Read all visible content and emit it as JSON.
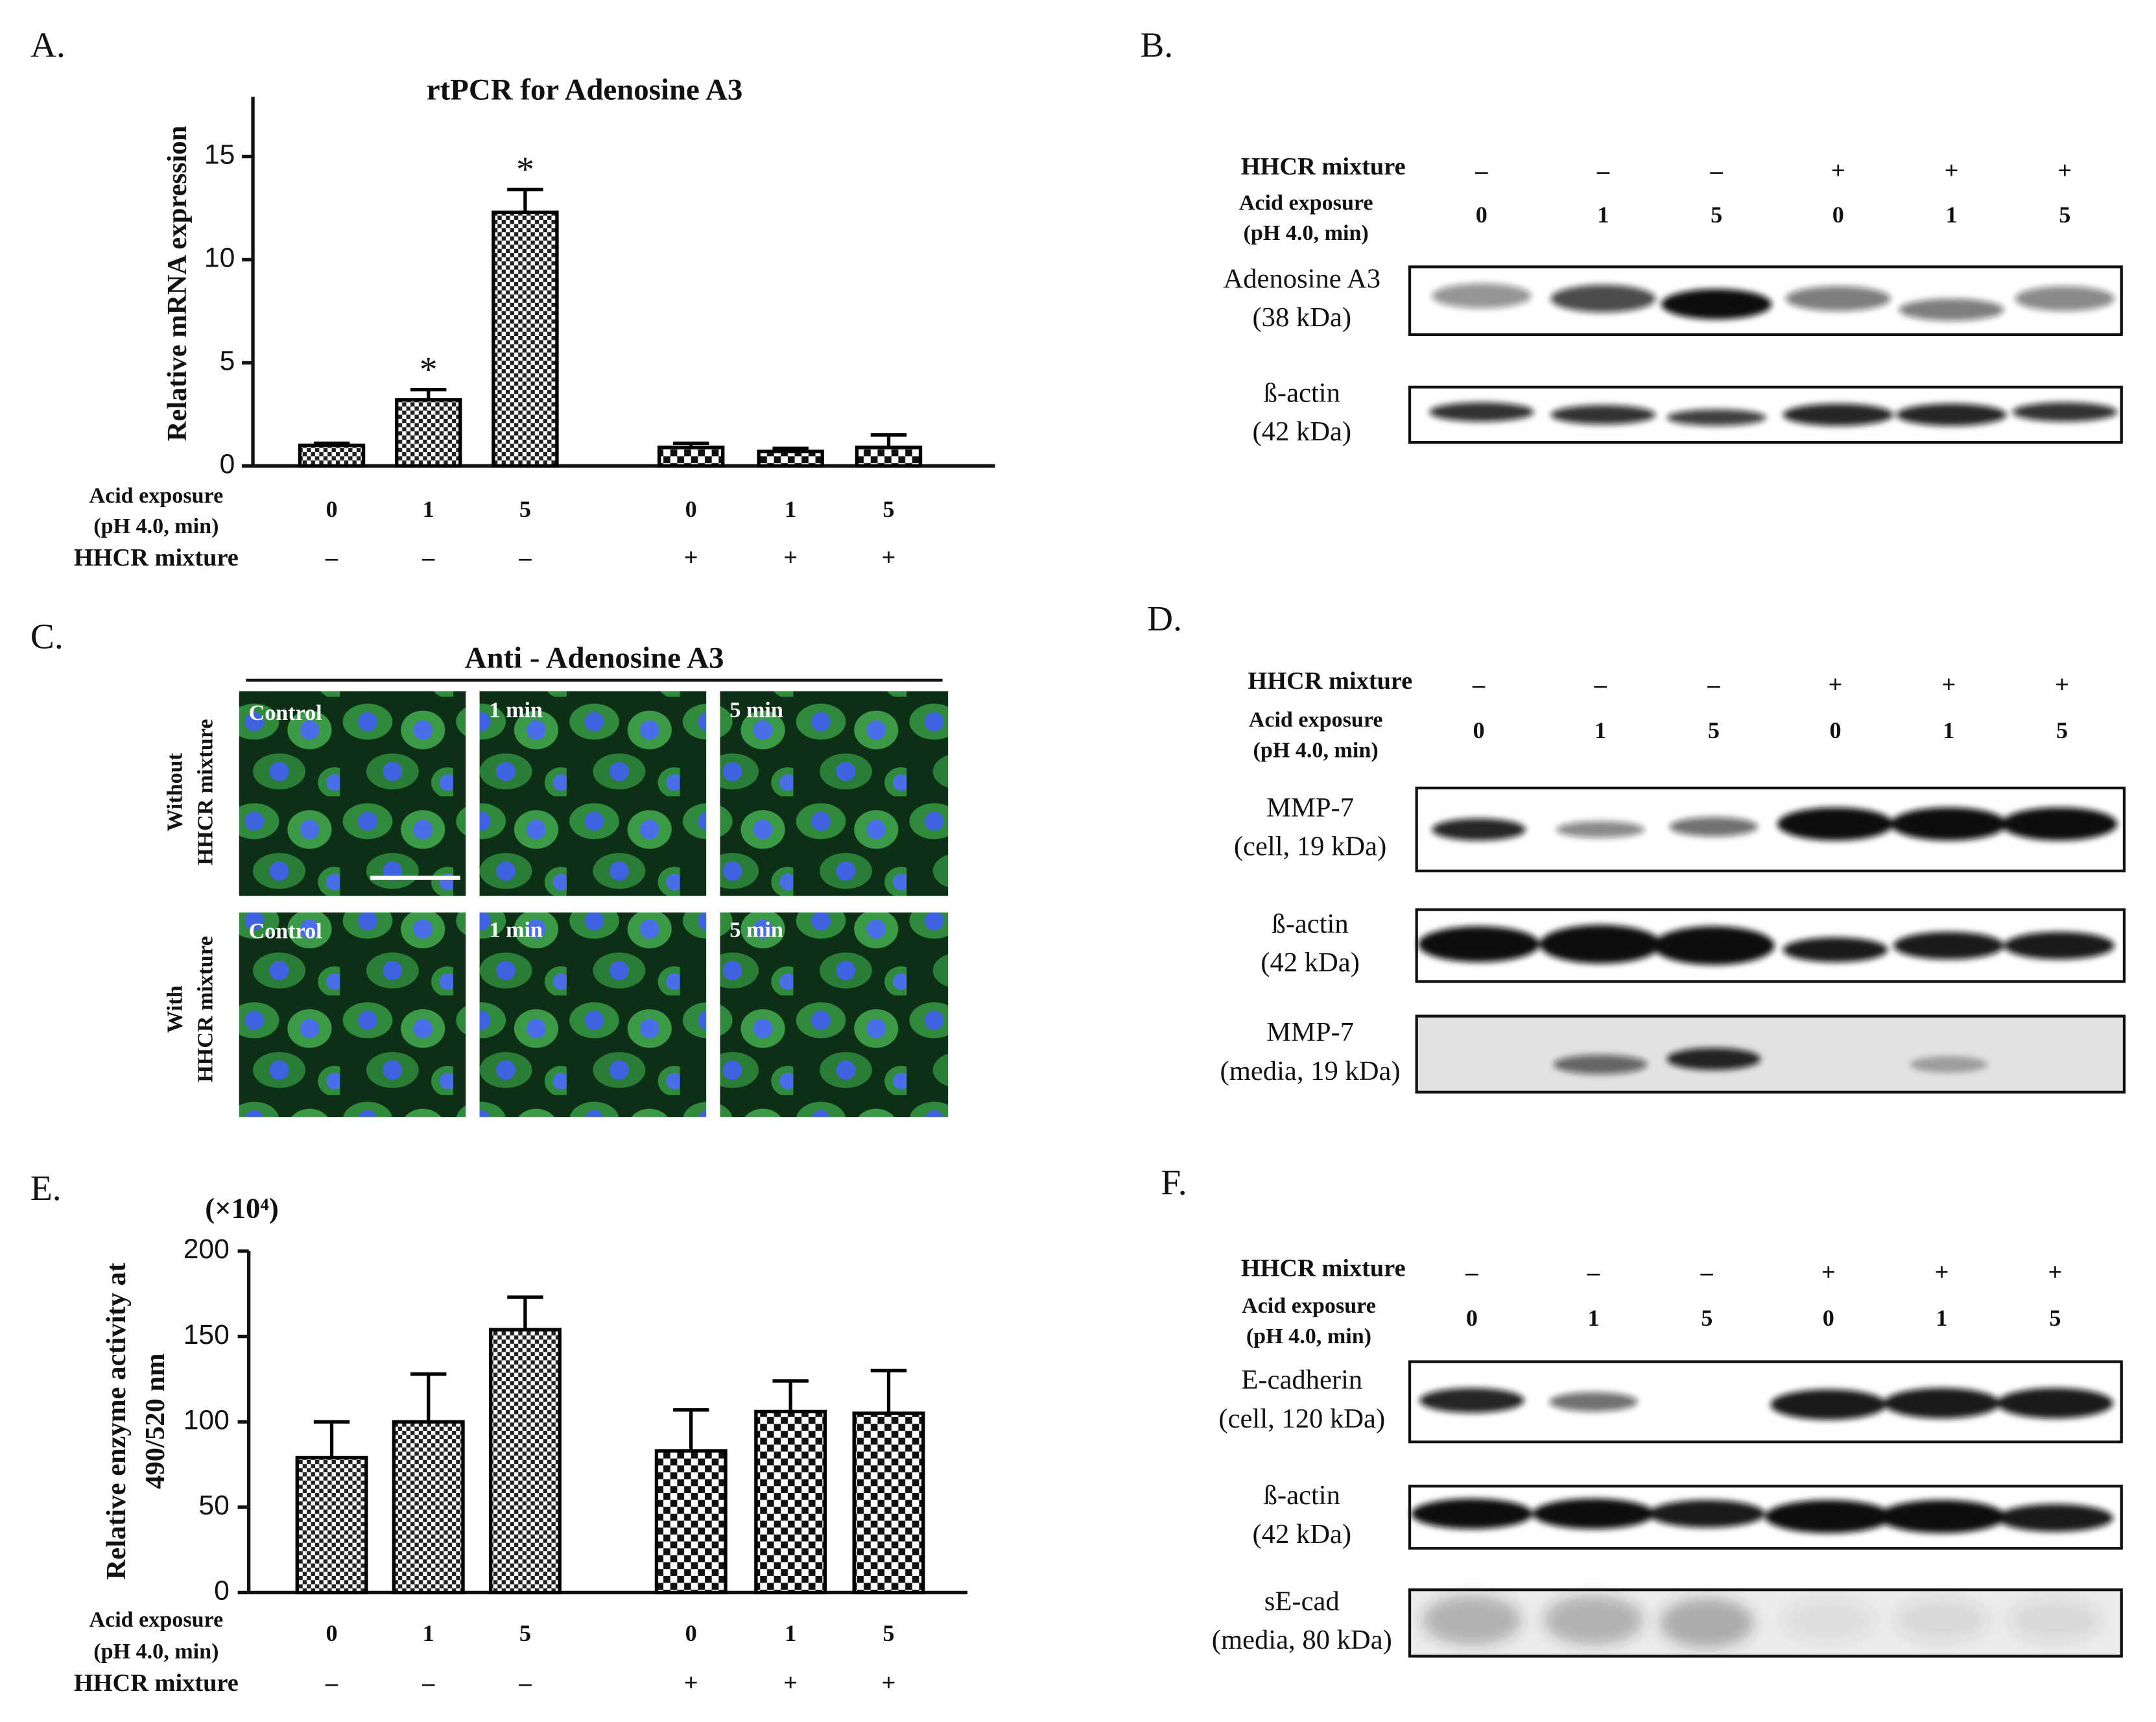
{
  "panel_labels": [
    "A.",
    "B.",
    "C.",
    "D.",
    "E.",
    "F."
  ],
  "chart_data": [
    {
      "type": "bar",
      "title": "rtPCR for Adenosine A3",
      "ylabel": [
        "Relative  mRNA expression"
      ],
      "categories": [
        "0",
        "1",
        "5",
        "0",
        "1",
        "5"
      ],
      "values": [
        1.0,
        3.2,
        12.3,
        0.9,
        0.7,
        0.9
      ],
      "errors": [
        0.1,
        0.5,
        1.1,
        0.2,
        0.15,
        0.6
      ],
      "annotations": [
        null,
        "*",
        "*",
        null,
        null,
        null
      ],
      "acid_label": [
        "Acid exposure",
        "(pH 4.0, min)"
      ],
      "hhcr_label": "HHCR mixture",
      "hhcr": [
        "–",
        "–",
        "–",
        "+",
        "+",
        "+"
      ],
      "ylim": [
        0,
        17.9
      ],
      "yticks": [
        0,
        5,
        10,
        15
      ],
      "color": "#000000"
    },
    {
      "type": "bar",
      "unit_label": "(×10⁴)",
      "ylabel": [
        "Relative enzyme activity at",
        "490/520 nm"
      ],
      "categories": [
        "0",
        "1",
        "5",
        "0",
        "1",
        "5"
      ],
      "values": [
        79,
        100,
        154,
        83,
        106,
        105
      ],
      "errors": [
        21,
        28,
        19,
        24,
        18,
        25
      ],
      "acid_label": [
        "Acid exposure",
        "(pH 4.0, min)"
      ],
      "hhcr_label": "HHCR mixture",
      "hhcr": [
        "–",
        "–",
        "–",
        "+",
        "+",
        "+"
      ],
      "ylim": [
        0,
        200
      ],
      "yticks": [
        0,
        50,
        100,
        150,
        200
      ],
      "color": "#000000"
    }
  ],
  "blots": [
    {
      "hhcr_label": "HHCR mixture",
      "hhcr": [
        "–",
        "–",
        "–",
        "+",
        "+",
        "+"
      ],
      "acid_label": [
        "Acid exposure",
        "(pH 4.0, min)"
      ],
      "acid": [
        "0",
        "1",
        "5",
        "0",
        "1",
        "5"
      ],
      "rows": [
        [
          "Adenosine A3",
          "(38 kDa)"
        ],
        [
          "ß-actin",
          "(42 kDa)"
        ]
      ]
    },
    {
      "hhcr_label": "HHCR mixture",
      "hhcr": [
        "–",
        "–",
        "–",
        "+",
        "+",
        "+"
      ],
      "acid_label": [
        "Acid exposure",
        "(pH 4.0, min)"
      ],
      "acid": [
        "0",
        "1",
        "5",
        "0",
        "1",
        "5"
      ],
      "rows": [
        [
          "MMP-7",
          "(cell, 19 kDa)"
        ],
        [
          "ß-actin",
          "(42 kDa)"
        ],
        [
          "MMP-7",
          "(media, 19 kDa)"
        ]
      ]
    },
    {
      "hhcr_label": "HHCR mixture",
      "hhcr": [
        "–",
        "–",
        "–",
        "+",
        "+",
        "+"
      ],
      "acid_label": [
        "Acid exposure",
        "(pH 4.0, min)"
      ],
      "acid": [
        "0",
        "1",
        "5",
        "0",
        "1",
        "5"
      ],
      "rows": [
        [
          "E-cadherin",
          "(cell, 120 kDa)"
        ],
        [
          "ß-actin",
          "(42 kDa)"
        ],
        [
          "sE-cad",
          "(media, 80 kDa)"
        ]
      ]
    }
  ],
  "microscopy": {
    "title": "Anti - Adenosine A3",
    "row_labels": [
      [
        "Without",
        "HHCR mixture"
      ],
      [
        "With",
        "HHCR mixture"
      ]
    ],
    "columns": [
      [
        "Control",
        "1 min",
        "5 min"
      ],
      [
        "Control",
        "1 min",
        "5 min"
      ]
    ]
  }
}
